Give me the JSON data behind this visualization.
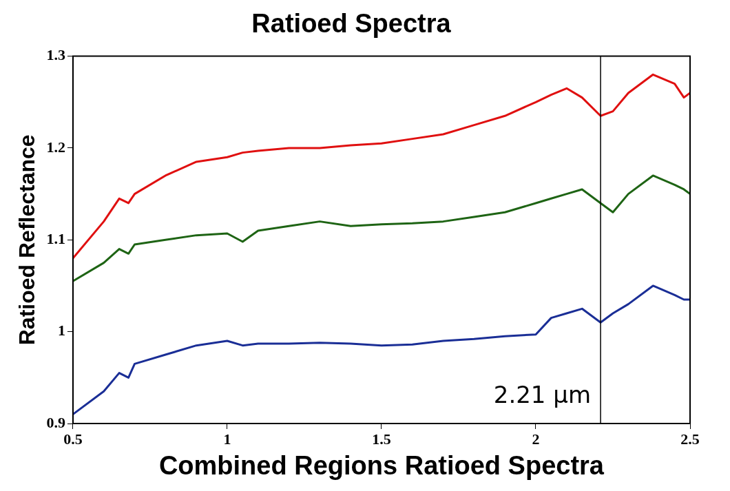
{
  "chart_data": {
    "type": "line",
    "title": "Ratioed Spectra",
    "xlabel": "Combined Regions Ratioed Spectra",
    "ylabel": "Ratioed Reflectance",
    "xlim": [
      0.5,
      2.5
    ],
    "xticks": [
      0.5,
      1,
      1.5,
      2,
      2.5
    ],
    "ylim": [
      0.9,
      1.3
    ],
    "yticks": [
      0.9,
      1,
      1.1,
      1.2,
      1.3
    ],
    "grid": false,
    "legend": false,
    "marker": "none",
    "line_style": "solid",
    "x": [
      0.5,
      0.6,
      0.65,
      0.68,
      0.7,
      0.8,
      0.9,
      1.0,
      1.05,
      1.1,
      1.2,
      1.3,
      1.4,
      1.5,
      1.6,
      1.7,
      1.8,
      1.9,
      2.0,
      2.05,
      2.1,
      2.15,
      2.21,
      2.25,
      2.3,
      2.38,
      2.45,
      2.48,
      2.5
    ],
    "series": [
      {
        "color": "#e01010",
        "values": [
          1.08,
          1.12,
          1.145,
          1.14,
          1.15,
          1.17,
          1.185,
          1.19,
          1.195,
          1.197,
          1.2,
          1.2,
          1.203,
          1.205,
          1.21,
          1.215,
          1.225,
          1.235,
          1.25,
          1.258,
          1.265,
          1.255,
          1.235,
          1.24,
          1.26,
          1.28,
          1.27,
          1.255,
          1.26
        ]
      },
      {
        "color": "#1e6414",
        "values": [
          1.055,
          1.075,
          1.09,
          1.085,
          1.095,
          1.1,
          1.105,
          1.107,
          1.098,
          1.11,
          1.115,
          1.12,
          1.115,
          1.117,
          1.118,
          1.12,
          1.125,
          1.13,
          1.14,
          1.145,
          1.15,
          1.155,
          1.14,
          1.13,
          1.15,
          1.17,
          1.16,
          1.155,
          1.15
        ]
      },
      {
        "color": "#1a2e96",
        "values": [
          0.91,
          0.935,
          0.955,
          0.95,
          0.965,
          0.975,
          0.985,
          0.99,
          0.985,
          0.987,
          0.987,
          0.988,
          0.987,
          0.985,
          0.986,
          0.99,
          0.992,
          0.995,
          0.997,
          1.015,
          1.02,
          1.025,
          1.01,
          1.02,
          1.03,
          1.05,
          1.04,
          1.035,
          1.035
        ]
      }
    ],
    "ref_lines": [
      {
        "axis": "x",
        "value": 2.21,
        "label": "2.21 μm",
        "color": "#000000"
      }
    ]
  }
}
